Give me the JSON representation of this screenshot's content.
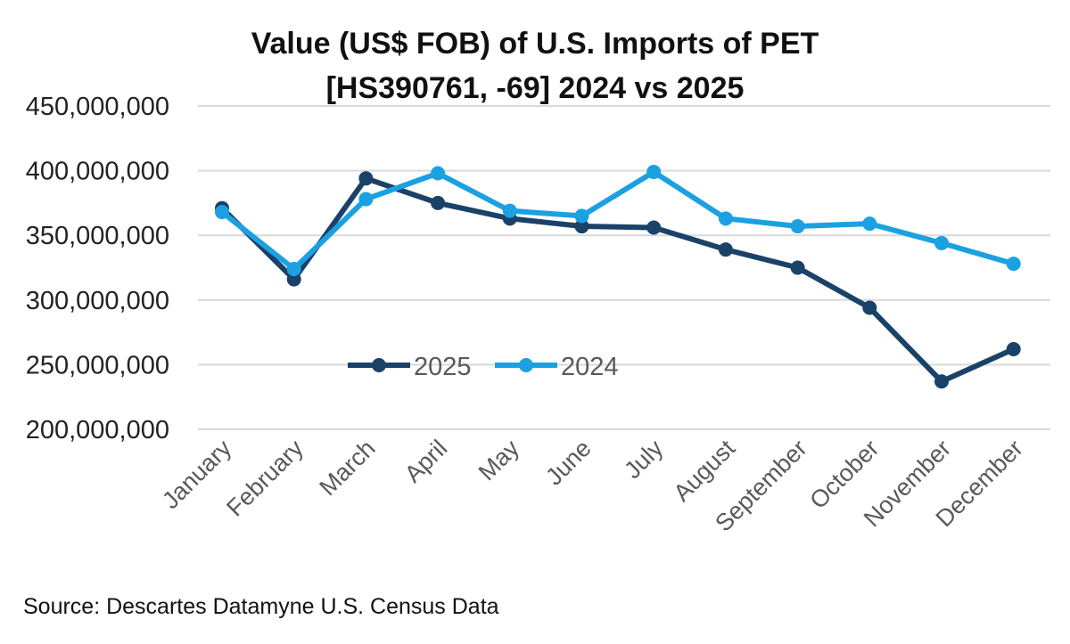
{
  "chart_data": {
    "type": "line",
    "title": [
      "Value (US$ FOB) of U.S. Imports of PET",
      "[HS390761, -69] 2024 vs 2025"
    ],
    "categories": [
      "January",
      "February",
      "March",
      "April",
      "May",
      "June",
      "July",
      "August",
      "September",
      "October",
      "November",
      "December"
    ],
    "ylim": [
      200000000,
      450000000
    ],
    "yticks": [
      200000000,
      250000000,
      300000000,
      350000000,
      400000000,
      450000000
    ],
    "ytick_labels": [
      "200,000,000",
      "250,000,000",
      "300,000,000",
      "350,000,000",
      "400,000,000",
      "450,000,000"
    ],
    "grid": true,
    "legend_placement": "inside-lower-left",
    "series": [
      {
        "name": "2025",
        "color": "#1a4269",
        "values": [
          371000000,
          316000000,
          394000000,
          375000000,
          363000000,
          357000000,
          356000000,
          339000000,
          325000000,
          294000000,
          237000000,
          262000000
        ]
      },
      {
        "name": "2024",
        "color": "#1ba1e2",
        "values": [
          368000000,
          324000000,
          378000000,
          398000000,
          369000000,
          365000000,
          399000000,
          363000000,
          357000000,
          359000000,
          344000000,
          328000000
        ]
      }
    ]
  },
  "source": "Source: Descartes Datamyne U.S. Census Data"
}
